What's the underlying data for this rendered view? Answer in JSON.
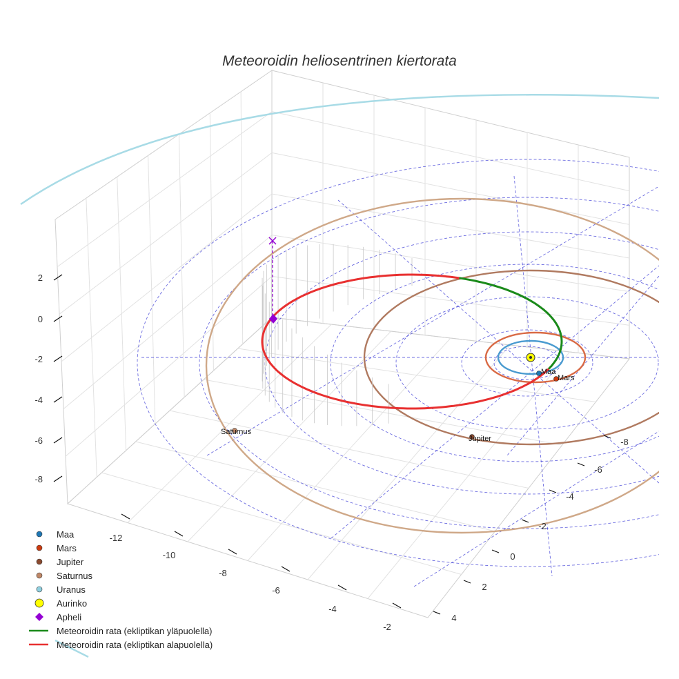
{
  "chart_data": {
    "type": "scatter3d",
    "title": "Meteoroidin heliosentrinen kiertorata",
    "axes": {
      "x": {
        "ticks": [
          -12,
          -10,
          -8,
          -6,
          -4,
          -2
        ]
      },
      "y": {
        "ticks": [
          -8,
          -6,
          -4,
          -2,
          0,
          2,
          4
        ]
      },
      "z": {
        "ticks": [
          2,
          0,
          -2,
          -4,
          -6,
          -8
        ]
      }
    },
    "planets": [
      {
        "name": "Maa",
        "label": "Maa",
        "color": "#1f77b4",
        "orbit_color": "#4a9bd0"
      },
      {
        "name": "Mars",
        "label": "Mars",
        "color": "#cc3b10",
        "orbit_color": "#d96a45"
      },
      {
        "name": "Jupiter",
        "label": "Jupiter",
        "color": "#8a4a2f",
        "orbit_color": "#b07a60"
      },
      {
        "name": "Saturnus",
        "label": "Saturnus",
        "color": "#c08868",
        "orbit_color": "#cfa888"
      },
      {
        "name": "Uranus",
        "label": "",
        "color": "#8fd0e0",
        "orbit_color": "#a8dbe6"
      }
    ],
    "sun": {
      "name": "Aurinko",
      "color": "#ffff00"
    },
    "aphelion": {
      "name": "Apheli",
      "color": "#9400d3"
    },
    "meteoroid": {
      "above_label": "Meteoroidin rata (ekliptikan yläpuolella)",
      "below_label": "Meteoroidin rata (ekliptikan alapuolella)",
      "above_color": "#1a8a1a",
      "below_color": "#e83030"
    },
    "grid_color": "#3b3bd6",
    "legend": [
      {
        "label": "Maa",
        "symbol": "circle",
        "color": "#1f77b4"
      },
      {
        "label": "Mars",
        "symbol": "circle",
        "color": "#cc3b10"
      },
      {
        "label": "Jupiter",
        "symbol": "circle",
        "color": "#8a4a2f"
      },
      {
        "label": "Saturnus",
        "symbol": "circle",
        "color": "#c08868"
      },
      {
        "label": "Uranus",
        "symbol": "circle",
        "color": "#8fd0e0"
      },
      {
        "label": "Aurinko",
        "symbol": "big-circle",
        "color": "#ffff00"
      },
      {
        "label": "Apheli",
        "symbol": "diamond",
        "color": "#9400d3"
      },
      {
        "label": "Meteoroidin rata (ekliptikan yläpuolella)",
        "symbol": "line",
        "color": "#1a8a1a"
      },
      {
        "label": "Meteoroidin rata (ekliptikan alapuolella)",
        "symbol": "line",
        "color": "#e83030"
      }
    ]
  }
}
